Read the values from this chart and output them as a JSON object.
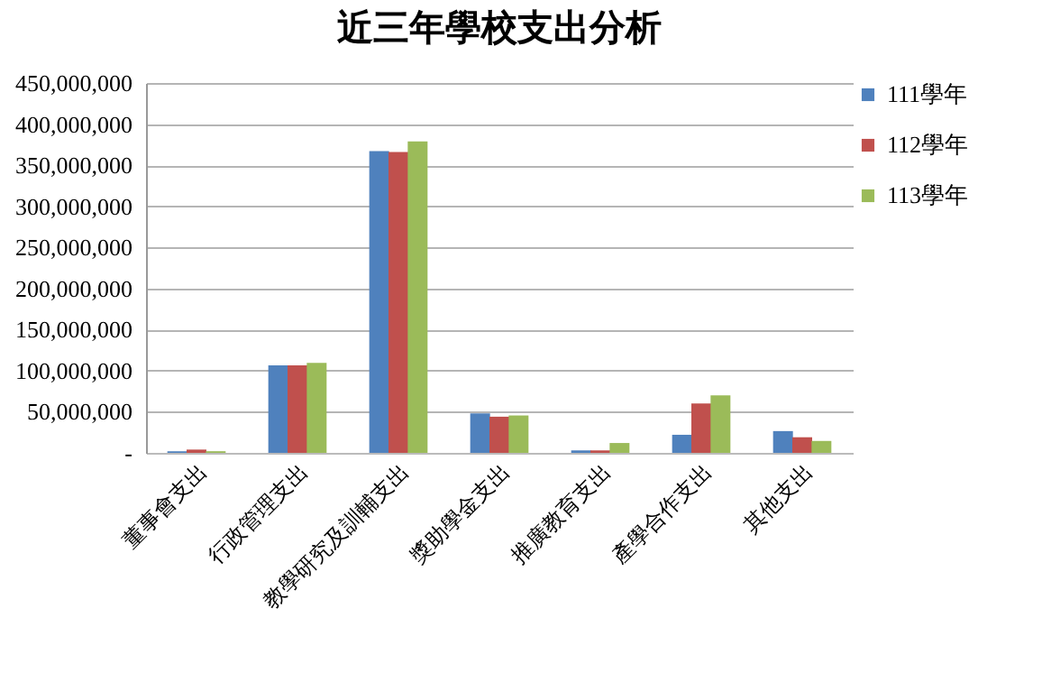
{
  "chart_data": {
    "type": "bar",
    "title": "近三年學校支出分析",
    "categories": [
      "董事會支出",
      "行政管理支出",
      "教學研究及訓輔支出",
      "獎助學金支出",
      "推廣教育支出",
      "產學合作支出",
      "其他支出"
    ],
    "series": [
      {
        "name": "111學年",
        "color": "#4f81bd",
        "values": [
          2000000,
          106500000,
          367000000,
          48000000,
          3000000,
          22000000,
          26500000
        ]
      },
      {
        "name": "112學年",
        "color": "#c0504d",
        "values": [
          4000000,
          106500000,
          366000000,
          44000000,
          3000000,
          60000000,
          19000000
        ]
      },
      {
        "name": "113學年",
        "color": "#9bbb59",
        "values": [
          2000000,
          109500000,
          379000000,
          45500000,
          12000000,
          70000000,
          14500000
        ]
      }
    ],
    "ylim": [
      0,
      450000000
    ],
    "yticks": [
      {
        "value": 0,
        "label": "-"
      },
      {
        "value": 50000000,
        "label": "50,000,000"
      },
      {
        "value": 100000000,
        "label": "100,000,000"
      },
      {
        "value": 150000000,
        "label": "150,000,000"
      },
      {
        "value": 200000000,
        "label": "200,000,000"
      },
      {
        "value": 250000000,
        "label": "250,000,000"
      },
      {
        "value": 300000000,
        "label": "300,000,000"
      },
      {
        "value": 350000000,
        "label": "350,000,000"
      },
      {
        "value": 400000000,
        "label": "400,000,000"
      },
      {
        "value": 450000000,
        "label": "450,000,000"
      }
    ],
    "grid": "y",
    "legend": "right"
  }
}
